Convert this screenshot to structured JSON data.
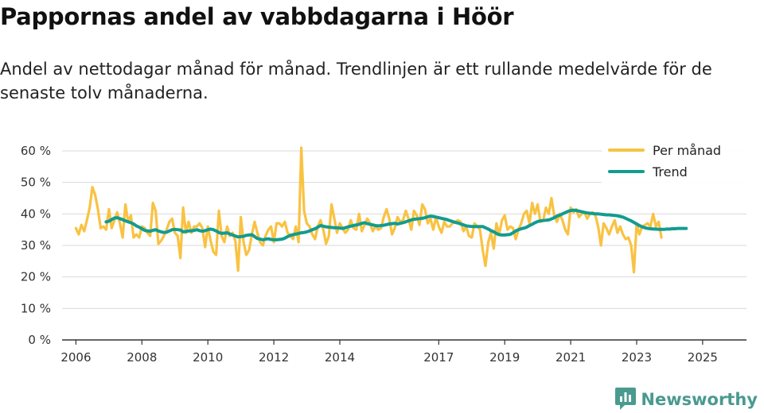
{
  "title": "Pappornas andel av vabbdagarna i Höör",
  "subtitle": "Andel av nettodagar månad för månad. Trendlinjen är ett rullande medelvärde för de senaste tolv månaderna.",
  "brand": {
    "name": "Newsworthy",
    "icon": "newsworthy-logo-icon",
    "color": "#4a9a8f"
  },
  "colors": {
    "monthly": "#f9c242",
    "trend": "#129c8f",
    "grid": "#d9d9d9",
    "axis": "#333333"
  },
  "chart_data": {
    "type": "line",
    "title": "Pappornas andel av vabbdagarna i Höör",
    "xlabel": "",
    "ylabel": "",
    "ylim": [
      0,
      60
    ],
    "xlim": [
      2005.58,
      2026.33
    ],
    "y_ticks": [
      {
        "value": 0,
        "label": "0 %"
      },
      {
        "value": 10,
        "label": "10 %"
      },
      {
        "value": 20,
        "label": "20 %"
      },
      {
        "value": 30,
        "label": "30 %"
      },
      {
        "value": 40,
        "label": "40 %"
      },
      {
        "value": 50,
        "label": "50 %"
      },
      {
        "value": 60,
        "label": "60 %"
      }
    ],
    "x_ticks": [
      {
        "value": 2006.0,
        "label": "2006"
      },
      {
        "value": 2008.0,
        "label": "2008"
      },
      {
        "value": 2010.0,
        "label": "2010"
      },
      {
        "value": 2012.0,
        "label": "2012"
      },
      {
        "value": 2014.0,
        "label": "2014"
      },
      {
        "value": 2017.0,
        "label": "2017"
      },
      {
        "value": 2019.0,
        "label": "2019"
      },
      {
        "value": 2021.0,
        "label": "2021"
      },
      {
        "value": 2023.0,
        "label": "2023"
      },
      {
        "value": 2025.0,
        "label": "2025"
      }
    ],
    "legend": {
      "position": "top-right",
      "entries": [
        "Per månad",
        "Trend"
      ]
    },
    "series": [
      {
        "name": "Per månad",
        "start": [
          2006,
          1
        ],
        "values": [
          35.5,
          33.5,
          36.5,
          34.5,
          38,
          42,
          48.5,
          46,
          41.5,
          35.5,
          36,
          35,
          41.5,
          35.5,
          38,
          40.5,
          37,
          32.5,
          43,
          37.5,
          39.5,
          32.5,
          33.5,
          32.5,
          36,
          35.5,
          34,
          33,
          43.5,
          41,
          30.5,
          31.5,
          33,
          35,
          37.5,
          38.5,
          34,
          33,
          26,
          42,
          34,
          37.5,
          34,
          36,
          36,
          37,
          35.5,
          29.5,
          36,
          31.5,
          28,
          27,
          41,
          33,
          31,
          36,
          33,
          34,
          31.5,
          22,
          39,
          31,
          27,
          28.5,
          33.5,
          37.5,
          34,
          31,
          30,
          33,
          35,
          36,
          31,
          37,
          37,
          36,
          37.5,
          34,
          33,
          32,
          36,
          31,
          61,
          41,
          37,
          36,
          33.5,
          32,
          36,
          38,
          35,
          30.5,
          33,
          43,
          38.5,
          34,
          37,
          35.5,
          34,
          35,
          38,
          35.5,
          35,
          40,
          34.5,
          36.5,
          38.5,
          37,
          34.5,
          36,
          35,
          35.5,
          39,
          41.5,
          38.5,
          33.5,
          35.5,
          39,
          37.5,
          38,
          41,
          38.5,
          35,
          41,
          39.5,
          36.5,
          43,
          41.5,
          37,
          38.5,
          35,
          39,
          36,
          34,
          37.5,
          36,
          36,
          37,
          37.5,
          38,
          37.5,
          34.5,
          36,
          33,
          32.5,
          37,
          36,
          35,
          28.5,
          23.5,
          31,
          34,
          29,
          37,
          33.5,
          38,
          39.5,
          35,
          36,
          35.5,
          32,
          35,
          37,
          40,
          41,
          37,
          43.5,
          40,
          43,
          37.5,
          38,
          42,
          40,
          45,
          39.5,
          37.5,
          40,
          38,
          35,
          33.5,
          42,
          40.5,
          41.5,
          39,
          40,
          40.5,
          38.5,
          40,
          40.5,
          39.5,
          36,
          30,
          37,
          35.5,
          33.5,
          36,
          38,
          34,
          36,
          33.5,
          32,
          32.5,
          30,
          21.5,
          37,
          33.5,
          36,
          36.5,
          37,
          36,
          40,
          36,
          37.5,
          32.5
        ]
      },
      {
        "name": "Trend",
        "start": [
          2006,
          12
        ],
        "values": [
          37.5,
          37.7,
          38.2,
          38.7,
          38.8,
          38.5,
          38.2,
          37.8,
          37.5,
          37.2,
          36.8,
          36.2,
          35.8,
          35.3,
          34.8,
          34.6,
          34.5,
          34.8,
          35,
          34.6,
          34.3,
          34.1,
          34.2,
          34.6,
          35,
          35.1,
          35,
          34.9,
          34.3,
          34.4,
          34.6,
          34.6,
          34.8,
          35,
          34.7,
          34.5,
          34.7,
          35,
          35.2,
          35,
          34.6,
          34.1,
          33.8,
          33.9,
          34,
          33.6,
          33.3,
          33,
          32.7,
          32.8,
          32.9,
          33.2,
          33.3,
          33.4,
          32.8,
          32.2,
          32,
          31.8,
          32,
          32.1,
          31.9,
          31.8,
          31.8,
          31.9,
          32,
          32.3,
          32.8,
          33.2,
          33.4,
          33.6,
          33.8,
          34,
          34.1,
          34.3,
          34.6,
          35,
          35.3,
          35.8,
          36.3,
          36.1,
          35.9,
          35.8,
          35.7,
          35.6,
          35.6,
          35.5,
          35.4,
          35.6,
          35.9,
          36.1,
          36.3,
          36.5,
          36.7,
          37,
          37.2,
          36.9,
          36.7,
          36.5,
          36.3,
          36.2,
          36.3,
          36.4,
          36.6,
          36.8,
          36.9,
          37,
          36.8,
          37,
          37.2,
          37.5,
          37.8,
          38.1,
          38.3,
          38.4,
          38.5,
          38.6,
          38.8,
          39.1,
          39.3,
          39.2,
          39,
          38.8,
          38.6,
          38.4,
          38.2,
          37.9,
          37.6,
          37.3,
          37.1,
          36.8,
          36.5,
          36.2,
          36.1,
          36,
          36,
          36,
          36,
          36,
          35.6,
          35.2,
          34.7,
          34.3,
          33.8,
          33.4,
          33.3,
          33.3,
          33.4,
          33.5,
          34,
          34.6,
          35,
          35.3,
          35.5,
          35.8,
          36.3,
          36.7,
          37.2,
          37.6,
          37.8,
          37.9,
          38,
          38.1,
          38.4,
          38.8,
          39.3,
          39.6,
          40,
          40.4,
          40.8,
          41.1,
          41.2,
          41.1,
          40.9,
          40.7,
          40.5,
          40.3,
          40.2,
          40.1,
          40,
          40,
          39.9,
          39.8,
          39.7,
          39.7,
          39.6,
          39.5,
          39.4,
          39.2,
          39,
          38.6,
          38.2,
          37.8,
          37.3,
          36.8,
          36.3,
          35.9,
          35.6,
          35.4,
          35.3,
          35.2,
          35.2,
          35.1,
          35.1,
          35.1,
          35.2,
          35.2,
          35.3,
          35.3,
          35.4,
          35.4,
          35.4,
          35.4
        ]
      }
    ]
  }
}
